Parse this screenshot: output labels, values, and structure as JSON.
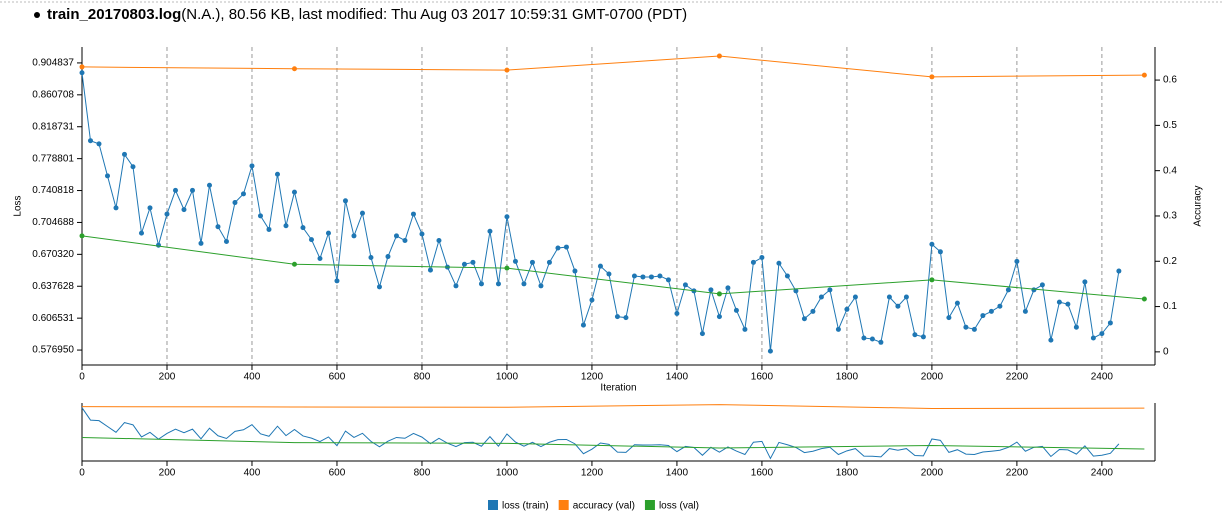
{
  "header": {
    "file": "train_20170803.log",
    "info": "(N.A.), 80.56 KB, last modified: Thu Aug 03 2017 10:59:31 GMT-0700 (PDT)"
  },
  "chart_data": {
    "type": "line",
    "yscale": "log",
    "grid": true,
    "legend": "bottom",
    "xlabel": "Iteration",
    "ylabel": "Loss",
    "y2label": "Accuracy",
    "xlim": [
      0,
      2525
    ],
    "xticks": [
      0,
      200,
      400,
      600,
      800,
      1000,
      1200,
      1400,
      1600,
      1800,
      2000,
      2200,
      2400
    ],
    "ylim": [
      0.5636,
      0.9277
    ],
    "yticks": [
      0.904837,
      0.860708,
      0.818731,
      0.778801,
      0.740818,
      0.704688,
      {
        "value": 0.67032,
        "label": "0.670320"
      },
      0.637628,
      0.606531,
      {
        "value": 0.57695,
        "label": "0.576950"
      }
    ],
    "y2lim": [
      -0.029,
      0.673
    ],
    "y2ticks": [
      0,
      0.1,
      0.2,
      0.3,
      0.4,
      0.5,
      0.6
    ],
    "series": [
      {
        "name": "loss (train)",
        "color": "#1f77b4",
        "x": [
          0,
          20,
          40,
          60,
          80,
          100,
          120,
          140,
          160,
          180,
          200,
          220,
          240,
          260,
          280,
          300,
          320,
          340,
          360,
          380,
          400,
          420,
          440,
          460,
          480,
          500,
          520,
          540,
          560,
          580,
          600,
          620,
          640,
          660,
          680,
          700,
          720,
          740,
          760,
          780,
          800,
          820,
          840,
          860,
          880,
          900,
          920,
          940,
          960,
          980,
          1000,
          1020,
          1040,
          1060,
          1080,
          1100,
          1120,
          1140,
          1160,
          1180,
          1200,
          1220,
          1240,
          1260,
          1280,
          1300,
          1320,
          1340,
          1360,
          1380,
          1400,
          1420,
          1440,
          1460,
          1480,
          1500,
          1520,
          1540,
          1560,
          1580,
          1600,
          1620,
          1640,
          1660,
          1680,
          1700,
          1720,
          1740,
          1760,
          1780,
          1800,
          1820,
          1840,
          1860,
          1880,
          1900,
          1920,
          1940,
          1960,
          1980,
          2000,
          2020,
          2040,
          2060,
          2080,
          2100,
          2120,
          2140,
          2160,
          2180,
          2200,
          2220,
          2240,
          2260,
          2280,
          2300,
          2320,
          2340,
          2360,
          2380,
          2400,
          2420,
          2440
        ],
        "values": [
          0.891,
          0.801,
          0.797,
          0.758,
          0.721,
          0.784,
          0.769,
          0.693,
          0.721,
          0.68,
          0.714,
          0.741,
          0.719,
          0.741,
          0.682,
          0.747,
          0.7,
          0.684,
          0.727,
          0.737,
          0.77,
          0.712,
          0.697,
          0.76,
          0.701,
          0.739,
          0.699,
          0.686,
          0.666,
          0.693,
          0.643,
          0.729,
          0.69,
          0.715,
          0.667,
          0.637,
          0.668,
          0.69,
          0.685,
          0.714,
          0.692,
          0.654,
          0.685,
          0.657,
          0.638,
          0.66,
          0.662,
          0.64,
          0.695,
          0.64,
          0.711,
          0.663,
          0.64,
          0.662,
          0.638,
          0.662,
          0.677,
          0.678,
          0.653,
          0.6,
          0.624,
          0.658,
          0.65,
          0.608,
          0.607,
          0.648,
          0.647,
          0.647,
          0.648,
          0.644,
          0.611,
          0.639,
          0.633,
          0.592,
          0.634,
          0.608,
          0.636,
          0.614,
          0.596,
          0.662,
          0.667,
          0.576,
          0.661,
          0.648,
          0.633,
          0.606,
          0.613,
          0.627,
          0.634,
          0.596,
          0.615,
          0.627,
          0.588,
          0.587,
          0.584,
          0.627,
          0.618,
          0.627,
          0.591,
          0.589,
          0.681,
          0.673,
          0.607,
          0.621,
          0.598,
          0.596,
          0.609,
          0.613,
          0.618,
          0.634,
          0.663,
          0.613,
          0.634,
          0.639,
          0.586,
          0.622,
          0.62,
          0.598,
          0.642,
          0.588,
          0.592,
          0.602,
          0.653
        ]
      },
      {
        "name": "accuracy (val)",
        "color": "#ff7f0e",
        "axis": "y2",
        "x": [
          0,
          500,
          1000,
          1500,
          2000,
          2500
        ],
        "values": [
          0.629,
          0.625,
          0.622,
          0.653,
          0.607,
          0.611
        ]
      },
      {
        "name": "loss (val)",
        "color": "#2ca02c",
        "x": [
          0,
          500,
          1000,
          1500,
          2000,
          2500
        ],
        "values": [
          0.69,
          0.66,
          0.656,
          0.63,
          0.644,
          0.625
        ]
      }
    ]
  }
}
